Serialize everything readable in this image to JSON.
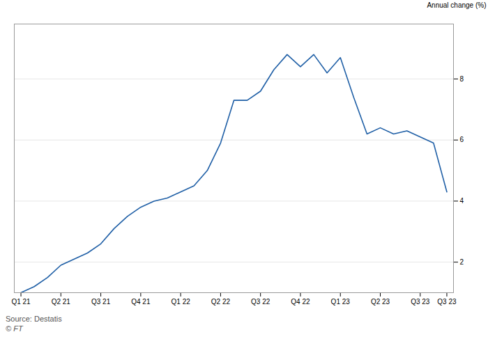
{
  "chart_data": {
    "type": "line",
    "ylabel": "Annual change (%)",
    "source": "Source: Destatis",
    "copyright": "© FT",
    "x": [
      0,
      1,
      2,
      3,
      4,
      5,
      6,
      7,
      8,
      9,
      10,
      11,
      12,
      13,
      14,
      15,
      16,
      17,
      18,
      19,
      20,
      21,
      22,
      23,
      24,
      25,
      26,
      27,
      28,
      29,
      30,
      31,
      32
    ],
    "values": [
      1.0,
      1.2,
      1.5,
      1.9,
      2.1,
      2.3,
      2.6,
      3.1,
      3.5,
      3.8,
      4.0,
      4.1,
      4.3,
      4.5,
      5.0,
      5.9,
      7.3,
      7.3,
      7.6,
      8.3,
      8.8,
      8.4,
      8.8,
      8.2,
      8.7,
      7.4,
      6.2,
      6.4,
      6.2,
      6.3,
      6.1,
      5.9,
      4.3
    ],
    "color": "#1f5fa6",
    "xlim": [
      -0.5,
      32.5
    ],
    "xticks": [
      {
        "value": 0,
        "label": "Q1 21"
      },
      {
        "value": 3,
        "label": "Q2 21"
      },
      {
        "value": 6,
        "label": "Q3 21"
      },
      {
        "value": 9,
        "label": "Q4 21"
      },
      {
        "value": 12,
        "label": "Q1 22"
      },
      {
        "value": 15,
        "label": "Q2 22"
      },
      {
        "value": 18,
        "label": "Q3 22"
      },
      {
        "value": 21,
        "label": "Q4 22"
      },
      {
        "value": 24,
        "label": "Q1 23"
      },
      {
        "value": 27,
        "label": "Q2 23"
      },
      {
        "value": 30,
        "label": "Q3 23"
      },
      {
        "value": 32,
        "label": "Q3 23"
      }
    ],
    "ylim": [
      1.0,
      9.8
    ],
    "yticks": [
      2,
      4,
      6,
      8
    ],
    "grid": true
  }
}
